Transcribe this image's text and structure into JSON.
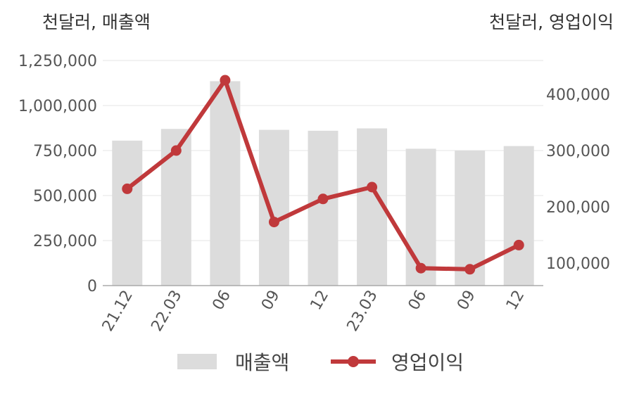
{
  "units": {
    "left": "천달러, 매출액",
    "right": "천달러, 영업이익"
  },
  "legend": {
    "bar_label": "매출액",
    "line_label": "영업이익"
  },
  "colors": {
    "bar": "#dcdcdc",
    "line": "#c0393b",
    "grid": "#e6e6e6",
    "axis": "#aaaaaa"
  },
  "chart_data": {
    "type": "bar",
    "categories": [
      "21.12",
      "22.03",
      "06",
      "09",
      "12",
      "23.03",
      "06",
      "09",
      "12"
    ],
    "series": [
      {
        "name": "매출액",
        "type": "bar",
        "axis": "left",
        "values": [
          805000,
          870000,
          1135000,
          865000,
          860000,
          873000,
          760000,
          750000,
          775000
        ]
      },
      {
        "name": "영업이익",
        "type": "line",
        "axis": "right",
        "values": [
          232000,
          300000,
          425000,
          173000,
          214000,
          235000,
          91000,
          89000,
          132000
        ]
      }
    ],
    "y_left": {
      "lim": [
        0,
        1250000
      ],
      "ticks": [
        0,
        250000,
        500000,
        750000,
        1000000,
        1250000
      ],
      "tick_labels": [
        "0",
        "250,000",
        "500,000",
        "750,000",
        "1,000,000",
        "1,250,000"
      ]
    },
    "y_right": {
      "lim": [
        60000,
        460000
      ],
      "ticks": [
        100000,
        200000,
        300000,
        400000
      ],
      "tick_labels": [
        "100,000",
        "200,000",
        "300,000",
        "400,000"
      ]
    },
    "grid": true,
    "legend_position": "bottom"
  }
}
